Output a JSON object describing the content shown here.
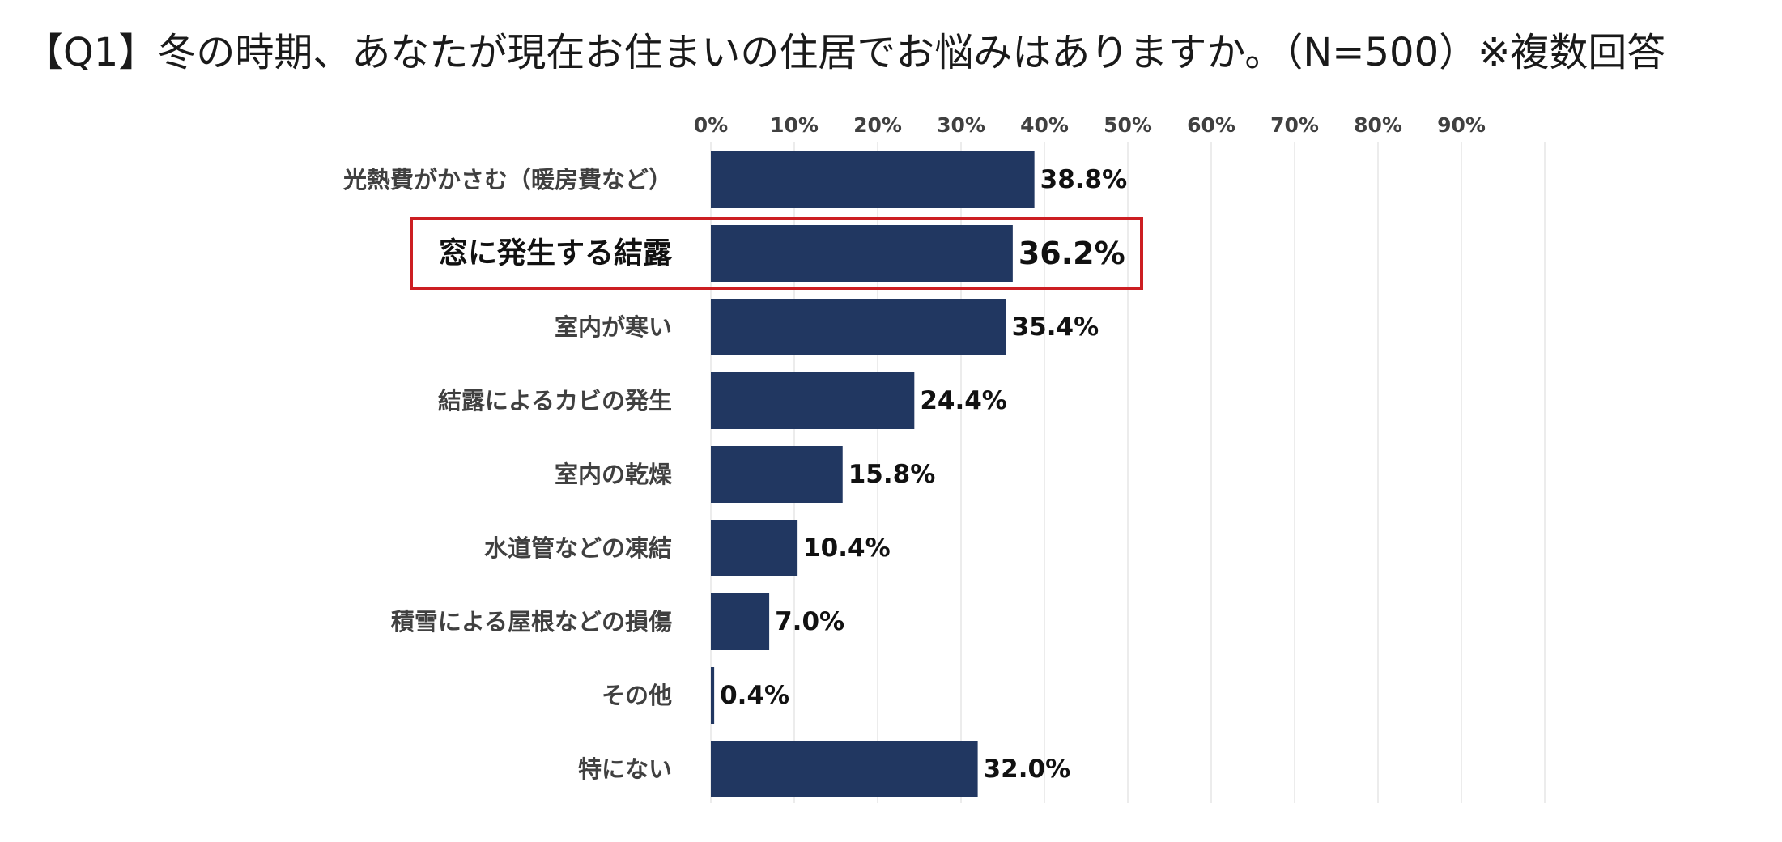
{
  "title": "【Q1】冬の時期、あなたが現在お住まいの住居でお悩みはありますか。（N=500）※複数回答",
  "colors": {
    "bar": "#213761",
    "highlight_box": "#cc1e22",
    "grid": "#e6e6e6"
  },
  "chart_data": {
    "type": "bar",
    "orientation": "horizontal",
    "categories": [
      "光熱費がかさむ（暖房費など）",
      "窓に発生する結露",
      "室内が寒い",
      "結露によるカビの発生",
      "室内の乾燥",
      "水道管などの凍結",
      "積雪による屋根などの損傷",
      "その他",
      "特にない"
    ],
    "values": [
      38.8,
      36.2,
      35.4,
      24.4,
      15.8,
      10.4,
      7.0,
      0.4,
      32.0
    ],
    "value_labels": [
      "38.8%",
      "36.2%",
      "35.4%",
      "24.4%",
      "15.8%",
      "10.4%",
      "7.0%",
      "0.4%",
      "32.0%"
    ],
    "x_ticks": [
      "0%",
      "10%",
      "20%",
      "30%",
      "40%",
      "50%",
      "60%",
      "70%",
      "80%",
      "90%"
    ],
    "xlim": [
      0,
      100
    ],
    "x_axis_position": "top",
    "grid": true,
    "highlighted_category": "窓に発生する結露"
  }
}
